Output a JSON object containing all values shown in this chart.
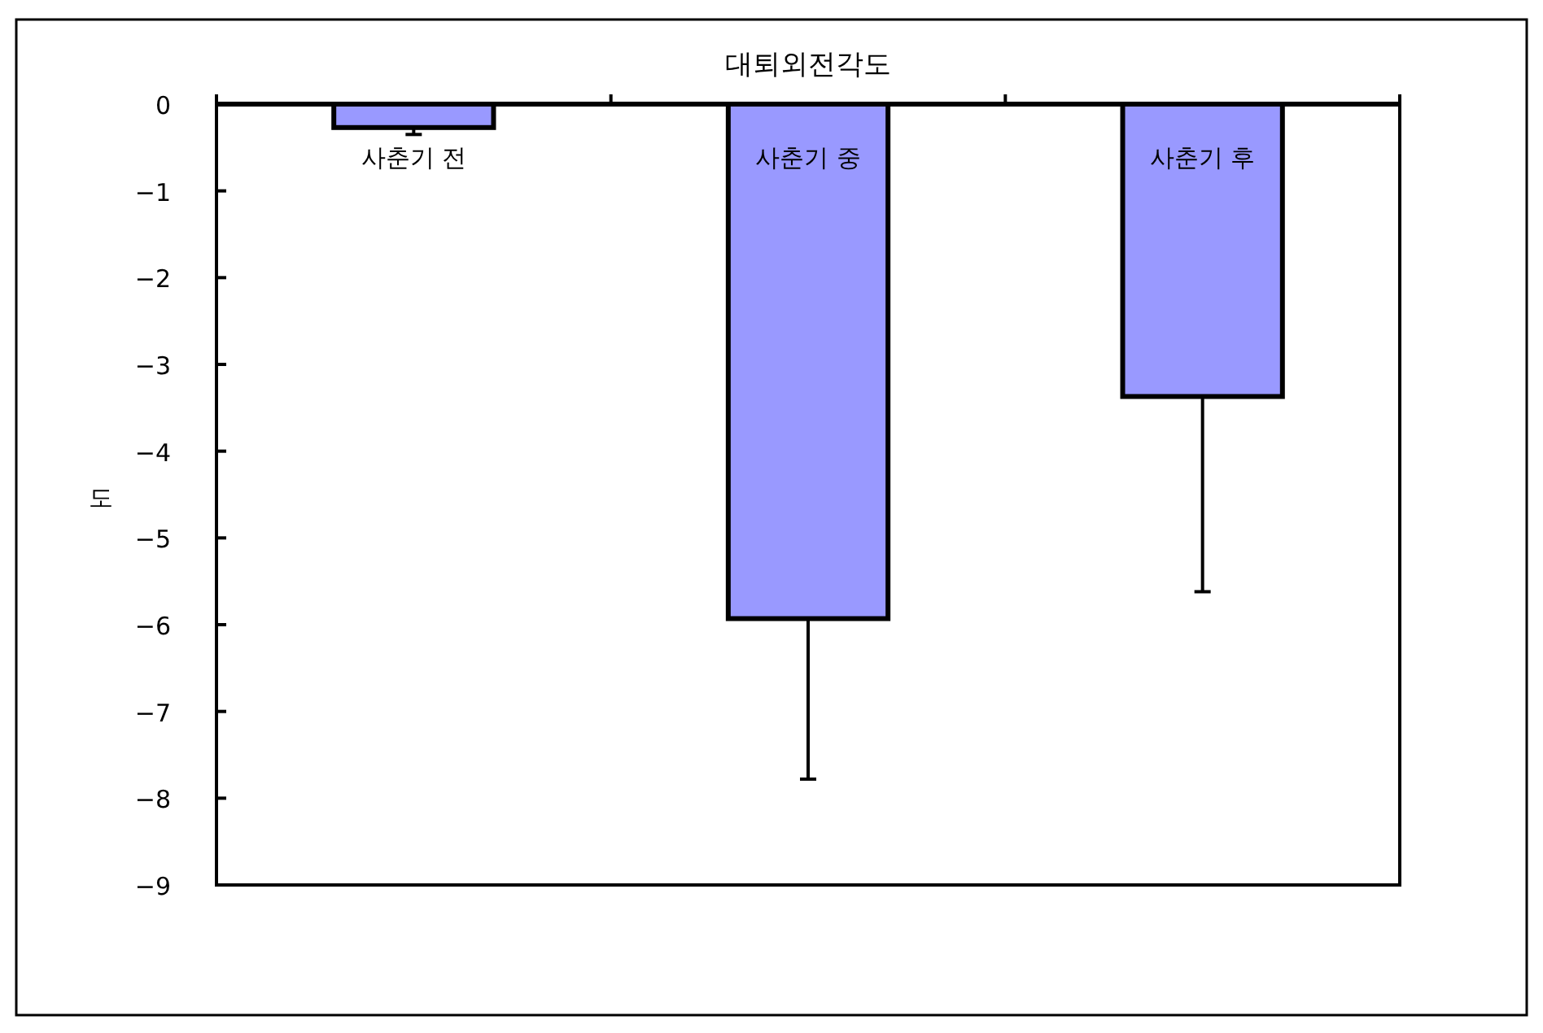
{
  "chart_data": {
    "type": "bar",
    "title": "대퇴외전각도",
    "ylabel": "도",
    "categories": [
      "사춘기 전",
      "사춘기 중",
      "사춘기 후"
    ],
    "values": [
      -0.27,
      -5.93,
      -3.37
    ],
    "errors": [
      [
        -0.35,
        -0.27
      ],
      [
        -7.78,
        -5.93
      ],
      [
        -5.62,
        -3.37
      ]
    ],
    "color": "#9999ff",
    "ylim": [
      -9,
      0
    ],
    "yticks": [
      {
        "value": 0,
        "label": "0"
      },
      {
        "value": -1,
        "label": "−1"
      },
      {
        "value": -2,
        "label": "−2"
      },
      {
        "value": -3,
        "label": "−3"
      },
      {
        "value": -4,
        "label": "−4"
      },
      {
        "value": -5,
        "label": "−5"
      },
      {
        "value": -6,
        "label": "−6"
      },
      {
        "value": -7,
        "label": "−7"
      },
      {
        "value": -8,
        "label": "−8"
      },
      {
        "value": -9,
        "label": "−9"
      }
    ],
    "grid": false
  }
}
